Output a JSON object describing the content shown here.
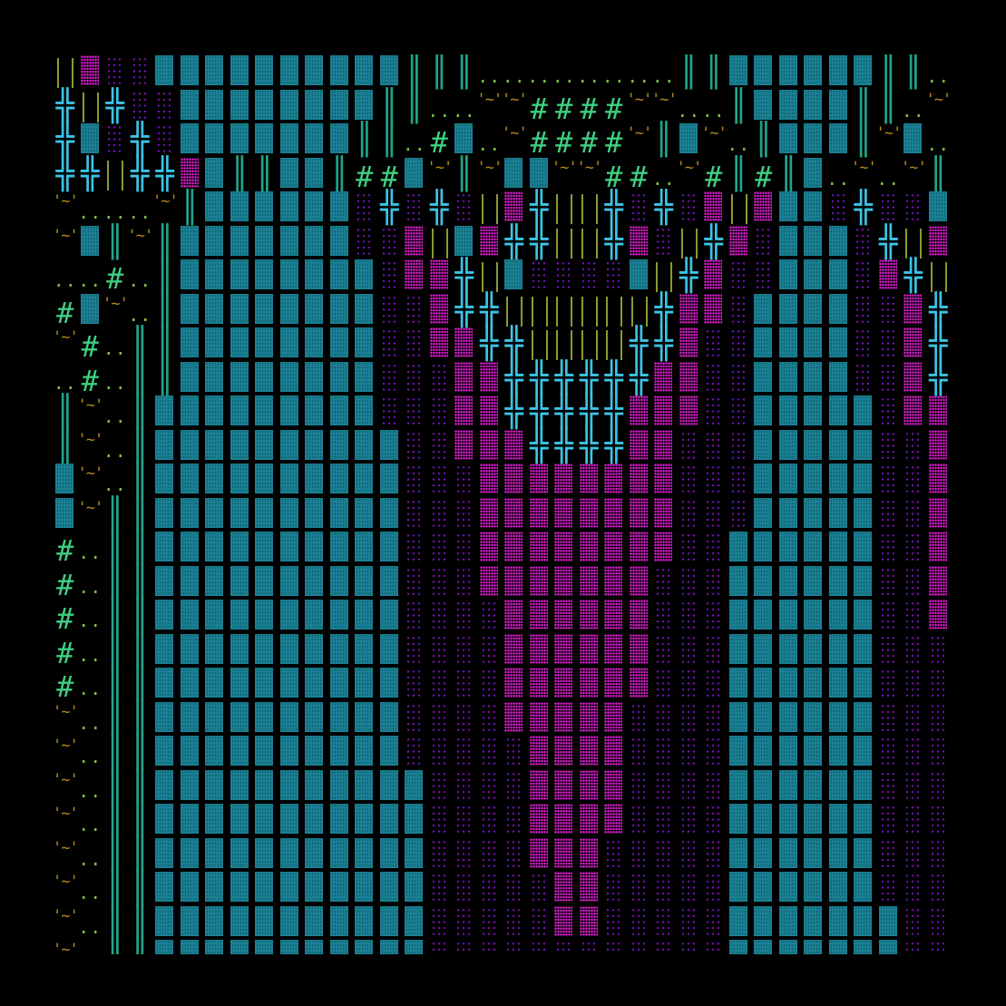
{
  "legend": {
    "T": {
      "glyph": "▓",
      "color": "#1a7f92"
    },
    "M": {
      "glyph": "▒",
      "color": "#e21ed6"
    },
    "P": {
      "glyph": "░",
      "color": "#7a12c2"
    },
    "X": {
      "glyph": "╬",
      "color": "#3cc4e6"
    },
    "D": {
      "glyph": "║",
      "color": "#1fa58a"
    },
    "I": {
      "glyph": "||",
      "color": "#8a9a30"
    },
    "H": {
      "glyph": "#",
      "color": "#3ecf80"
    },
    ".": {
      "glyph": "..",
      "color": "#7cc040"
    },
    "W": {
      "glyph": "'~'",
      "color": "#b8891e"
    }
  },
  "background": "#000000",
  "rows": [
    "IMPPTTTTTTTTTTDDD........DDTTTTTTDD.",
    "XIXPPTTTTTTTTDD..WWHHHHWW..DTTTTDD.W",
    "XTPXPTTTTTTTDD.HT.WHHHHWDTW.DTTTDWT.",
    "XXIXXMTDDTTDHHTWDWTTWWHH.WHDHDT.W.WD",
    "W...WDTTTTTTPXPXPIMXIIXPXPMIMTTPXPPT",
    "WTDWDTTTTTTTPPMITMXXIIXMPIXMPTTTPXIM",
    "..H.DTTTTTTTTPMMXITPPPPTIXMPPTTTPMXI",
    "HTW.DTTTTTTTTPPMXXIIIIIIXMMPTTTTPPMX",
    "WH.DDTTTTTTTTPPMMXXIIIIXXMPPTTTTPPMX",
    ".H.DDTTTTTTTTPPPMMXXXXXXMMPPTTTTPPMX",
    "DW.DTTTTTTTTTPPPMMXXXXXMMMPPTTTTTPMM",
    "DW.DTTTTTTTTTTPPMMMXXXXMMPPPTTTTTPPM",
    "TW.DTTTTTTTTTTPPPMMMMMMMMPPPTTTTTPPM",
    "TWDDTTTTTTTTTTPPPMMMMMMMMPPPTTTTTPPM",
    "H.DDTTTTTTTTTTPPPMMMMMMMMPPTTTTTTPPM",
    "H.DDTTTTTTTTTTPPPMMMMMMMPPPTTTTTTPPM",
    "H.DDTTTTTTTTTTPPPPMMMMMMPPPTTTTTTPPM",
    "H.DDTTTTTTTTTTPPPPMMMMMMPPPTTTTTTPPP",
    "H.DDTTTTTTTTTTPPPPMMMMMMPPPTTTTTTPPP",
    "W.DDTTTTTTTTTTPPPPMMMMMPPPPTTTTTTPPP",
    "W.DDTTTTTTTTTTPPPPPMMMMPPPPTTTTTTPPP",
    "W.DDTTTTTTTTTTTPPPPMMMMPPPPTTTTTTPPP",
    "W.DDTTTTTTTTTTTPPPPMMMMPPPPTTTTTTPPP",
    "W.DDTTTTTTTTTTTPPPPMMMPPPPPTTTTTTPPP",
    "W.DDTTTTTTTTTTTPPPPPMMPPPPPTTTTTTPPP",
    "W.DDTTTTTTTTTTTPPPPPMMPPPPPTTTTTTTPP",
    "W.DDTTTTTTTTTTTPPPPPPPPPPPPTTTTTTTPP"
  ]
}
